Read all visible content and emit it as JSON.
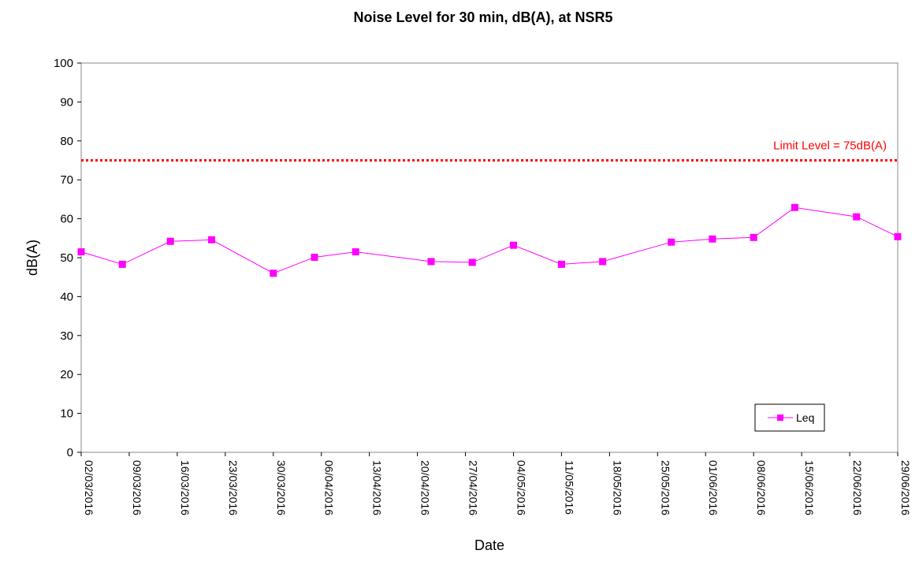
{
  "chart_data": {
    "type": "line",
    "title": "Noise Level for 30 min, dB(A), at NSR5",
    "xlabel": "Date",
    "ylabel": "dB(A)",
    "ylim": [
      0,
      100
    ],
    "yticks": [
      0,
      10,
      20,
      30,
      40,
      50,
      60,
      70,
      80,
      90,
      100
    ],
    "xlim": [
      "02/03/2016",
      "29/06/2016"
    ],
    "xticks": [
      "02/03/2016",
      "09/03/2016",
      "16/03/2016",
      "23/03/2016",
      "30/03/2016",
      "06/04/2016",
      "13/04/2016",
      "20/04/2016",
      "27/04/2016",
      "04/05/2016",
      "11/05/2016",
      "18/05/2016",
      "25/05/2016",
      "01/06/2016",
      "08/06/2016",
      "15/06/2016",
      "22/06/2016",
      "29/06/2016"
    ],
    "grid": false,
    "legend": "bottom-right",
    "series": [
      {
        "name": "Leq",
        "color": "#ff00ff",
        "marker": "square",
        "points": [
          {
            "x": "02/03/2016",
            "y": 51.5
          },
          {
            "x": "08/03/2016",
            "y": 48.3
          },
          {
            "x": "15/03/2016",
            "y": 54.2
          },
          {
            "x": "21/03/2016",
            "y": 54.6
          },
          {
            "x": "30/03/2016",
            "y": 46.0
          },
          {
            "x": "05/04/2016",
            "y": 50.1
          },
          {
            "x": "11/04/2016",
            "y": 51.5
          },
          {
            "x": "22/04/2016",
            "y": 49.0
          },
          {
            "x": "28/04/2016",
            "y": 48.8
          },
          {
            "x": "04/05/2016",
            "y": 53.2
          },
          {
            "x": "11/05/2016",
            "y": 48.3
          },
          {
            "x": "17/05/2016",
            "y": 49.0
          },
          {
            "x": "27/05/2016",
            "y": 54.0
          },
          {
            "x": "02/06/2016",
            "y": 54.8
          },
          {
            "x": "08/06/2016",
            "y": 55.2
          },
          {
            "x": "14/06/2016",
            "y": 62.9
          },
          {
            "x": "23/06/2016",
            "y": 60.5
          },
          {
            "x": "29/06/2016",
            "y": 55.4
          }
        ]
      }
    ],
    "limit_line": {
      "value": 75,
      "label": "Limit Level = 75dB(A)",
      "color": "#ff0000",
      "style": "dotted"
    }
  }
}
